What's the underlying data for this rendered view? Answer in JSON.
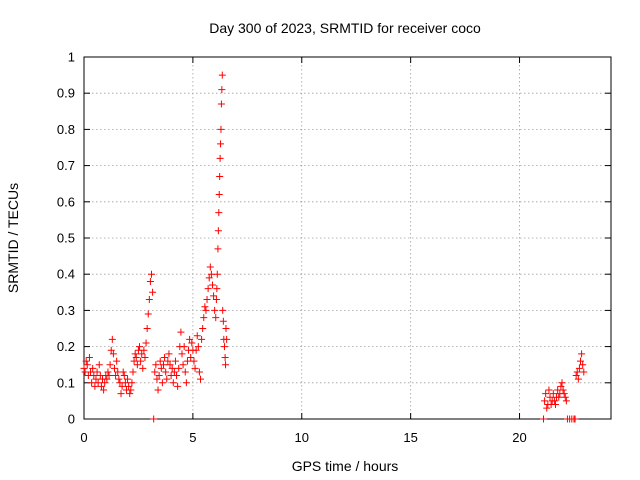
{
  "chart_data": {
    "type": "scatter",
    "title": "Day 300 of 2023, SRMTID for receiver coco",
    "xlabel": "GPS time / hours",
    "ylabel": "SRMTID / TECUs",
    "xlim": [
      0,
      24.2
    ],
    "ylim": [
      0,
      1
    ],
    "xticks": [
      0,
      5,
      10,
      15,
      20
    ],
    "xtick_labels": [
      "0",
      "5",
      "10",
      "15",
      "20"
    ],
    "yticks": [
      0,
      0.1,
      0.2,
      0.3,
      0.4,
      0.5,
      0.6,
      0.7,
      0.8,
      0.9,
      1
    ],
    "ytick_labels": [
      "0",
      "0.1",
      "0.2",
      "0.3",
      "0.4",
      "0.5",
      "0.6",
      "0.7",
      "0.8",
      "0.9",
      "1"
    ],
    "grid": true,
    "marker": "+",
    "color": "#ff0000",
    "series": [
      {
        "name": "SRMTID",
        "points": [
          [
            0.0,
            0.14
          ],
          [
            0.05,
            0.13
          ],
          [
            0.1,
            0.16
          ],
          [
            0.15,
            0.15
          ],
          [
            0.2,
            0.12
          ],
          [
            0.25,
            0.17
          ],
          [
            0.3,
            0.13
          ],
          [
            0.35,
            0.1
          ],
          [
            0.4,
            0.14
          ],
          [
            0.45,
            0.12
          ],
          [
            0.5,
            0.09
          ],
          [
            0.55,
            0.11
          ],
          [
            0.6,
            0.13
          ],
          [
            0.65,
            0.1
          ],
          [
            0.7,
            0.15
          ],
          [
            0.75,
            0.12
          ],
          [
            0.8,
            0.09
          ],
          [
            0.85,
            0.11
          ],
          [
            0.9,
            0.08
          ],
          [
            0.95,
            0.1
          ],
          [
            1.0,
            0.12
          ],
          [
            1.05,
            0.11
          ],
          [
            1.1,
            0.13
          ],
          [
            1.15,
            0.12
          ],
          [
            1.2,
            0.15
          ],
          [
            1.25,
            0.19
          ],
          [
            1.3,
            0.22
          ],
          [
            1.35,
            0.18
          ],
          [
            1.4,
            0.14
          ],
          [
            1.45,
            0.12
          ],
          [
            1.5,
            0.16
          ],
          [
            1.55,
            0.13
          ],
          [
            1.6,
            0.11
          ],
          [
            1.65,
            0.1
          ],
          [
            1.7,
            0.07
          ],
          [
            1.75,
            0.09
          ],
          [
            1.8,
            0.13
          ],
          [
            1.85,
            0.12
          ],
          [
            1.9,
            0.1
          ],
          [
            1.95,
            0.08
          ],
          [
            2.0,
            0.11
          ],
          [
            2.05,
            0.09
          ],
          [
            2.1,
            0.07
          ],
          [
            2.15,
            0.08
          ],
          [
            2.2,
            0.1
          ],
          [
            2.25,
            0.13
          ],
          [
            2.3,
            0.16
          ],
          [
            2.35,
            0.18
          ],
          [
            2.4,
            0.17
          ],
          [
            2.45,
            0.15
          ],
          [
            2.5,
            0.19
          ],
          [
            2.55,
            0.2
          ],
          [
            2.6,
            0.16
          ],
          [
            2.65,
            0.18
          ],
          [
            2.7,
            0.14
          ],
          [
            2.75,
            0.19
          ],
          [
            2.8,
            0.17
          ],
          [
            2.85,
            0.21
          ],
          [
            2.9,
            0.25
          ],
          [
            2.95,
            0.29
          ],
          [
            3.0,
            0.33
          ],
          [
            3.05,
            0.38
          ],
          [
            3.1,
            0.4
          ],
          [
            3.15,
            0.35
          ],
          [
            3.2,
            0.0
          ],
          [
            3.25,
            0.13
          ],
          [
            3.3,
            0.15
          ],
          [
            3.35,
            0.11
          ],
          [
            3.4,
            0.08
          ],
          [
            3.45,
            0.12
          ],
          [
            3.5,
            0.16
          ],
          [
            3.55,
            0.14
          ],
          [
            3.6,
            0.1
          ],
          [
            3.65,
            0.15
          ],
          [
            3.7,
            0.17
          ],
          [
            3.75,
            0.13
          ],
          [
            3.8,
            0.11
          ],
          [
            3.85,
            0.16
          ],
          [
            3.9,
            0.18
          ],
          [
            3.95,
            0.15
          ],
          [
            4.0,
            0.12
          ],
          [
            4.05,
            0.14
          ],
          [
            4.1,
            0.1
          ],
          [
            4.15,
            0.13
          ],
          [
            4.2,
            0.16
          ],
          [
            4.25,
            0.12
          ],
          [
            4.3,
            0.09
          ],
          [
            4.35,
            0.14
          ],
          [
            4.4,
            0.2
          ],
          [
            4.45,
            0.24
          ],
          [
            4.5,
            0.18
          ],
          [
            4.55,
            0.15
          ],
          [
            4.6,
            0.2
          ],
          [
            4.65,
            0.13
          ],
          [
            4.7,
            0.1
          ],
          [
            4.75,
            0.16
          ],
          [
            4.8,
            0.19
          ],
          [
            4.85,
            0.22
          ],
          [
            4.9,
            0.17
          ],
          [
            4.95,
            0.21
          ],
          [
            5.0,
            0.19
          ],
          [
            5.05,
            0.16
          ],
          [
            5.1,
            0.14
          ],
          [
            5.15,
            0.19
          ],
          [
            5.2,
            0.23
          ],
          [
            5.25,
            0.2
          ],
          [
            5.3,
            0.13
          ],
          [
            5.35,
            0.11
          ],
          [
            5.4,
            0.22
          ],
          [
            5.45,
            0.25
          ],
          [
            5.5,
            0.28
          ],
          [
            5.55,
            0.31
          ],
          [
            5.6,
            0.3
          ],
          [
            5.65,
            0.33
          ],
          [
            5.7,
            0.36
          ],
          [
            5.75,
            0.39
          ],
          [
            5.8,
            0.42
          ],
          [
            5.85,
            0.4
          ],
          [
            5.9,
            0.37
          ],
          [
            5.95,
            0.34
          ],
          [
            6.0,
            0.3
          ],
          [
            6.05,
            0.28
          ],
          [
            6.08,
            0.33
          ],
          [
            6.1,
            0.36
          ],
          [
            6.12,
            0.4
          ],
          [
            6.15,
            0.47
          ],
          [
            6.17,
            0.52
          ],
          [
            6.19,
            0.57
          ],
          [
            6.21,
            0.62
          ],
          [
            6.23,
            0.67
          ],
          [
            6.25,
            0.72
          ],
          [
            6.27,
            0.76
          ],
          [
            6.29,
            0.8
          ],
          [
            6.31,
            0.87
          ],
          [
            6.33,
            0.91
          ],
          [
            6.35,
            0.95
          ],
          [
            6.37,
            0.3
          ],
          [
            6.4,
            0.27
          ],
          [
            6.42,
            0.22
          ],
          [
            6.45,
            0.2
          ],
          [
            6.48,
            0.17
          ],
          [
            6.5,
            0.15
          ],
          [
            6.52,
            0.25
          ],
          [
            6.55,
            0.22
          ],
          [
            21.1,
            0.0
          ],
          [
            21.15,
            0.05
          ],
          [
            21.2,
            0.07
          ],
          [
            21.25,
            0.03
          ],
          [
            21.3,
            0.04
          ],
          [
            21.35,
            0.08
          ],
          [
            21.4,
            0.06
          ],
          [
            21.45,
            0.04
          ],
          [
            21.5,
            0.05
          ],
          [
            21.55,
            0.07
          ],
          [
            21.6,
            0.05
          ],
          [
            21.65,
            0.04
          ],
          [
            21.7,
            0.06
          ],
          [
            21.75,
            0.08
          ],
          [
            21.8,
            0.06
          ],
          [
            21.85,
            0.07
          ],
          [
            21.9,
            0.09
          ],
          [
            21.95,
            0.1
          ],
          [
            22.0,
            0.08
          ],
          [
            22.05,
            0.07
          ],
          [
            22.1,
            0.06
          ],
          [
            22.15,
            0.05
          ],
          [
            22.2,
            0.0
          ],
          [
            22.3,
            0.0
          ],
          [
            22.4,
            0.0
          ],
          [
            22.5,
            0.0
          ],
          [
            22.55,
            0.0
          ],
          [
            22.6,
            0.12
          ],
          [
            22.65,
            0.13
          ],
          [
            22.7,
            0.11
          ],
          [
            22.75,
            0.14
          ],
          [
            22.8,
            0.16
          ],
          [
            22.85,
            0.18
          ],
          [
            22.9,
            0.15
          ],
          [
            22.95,
            0.13
          ]
        ]
      }
    ]
  }
}
